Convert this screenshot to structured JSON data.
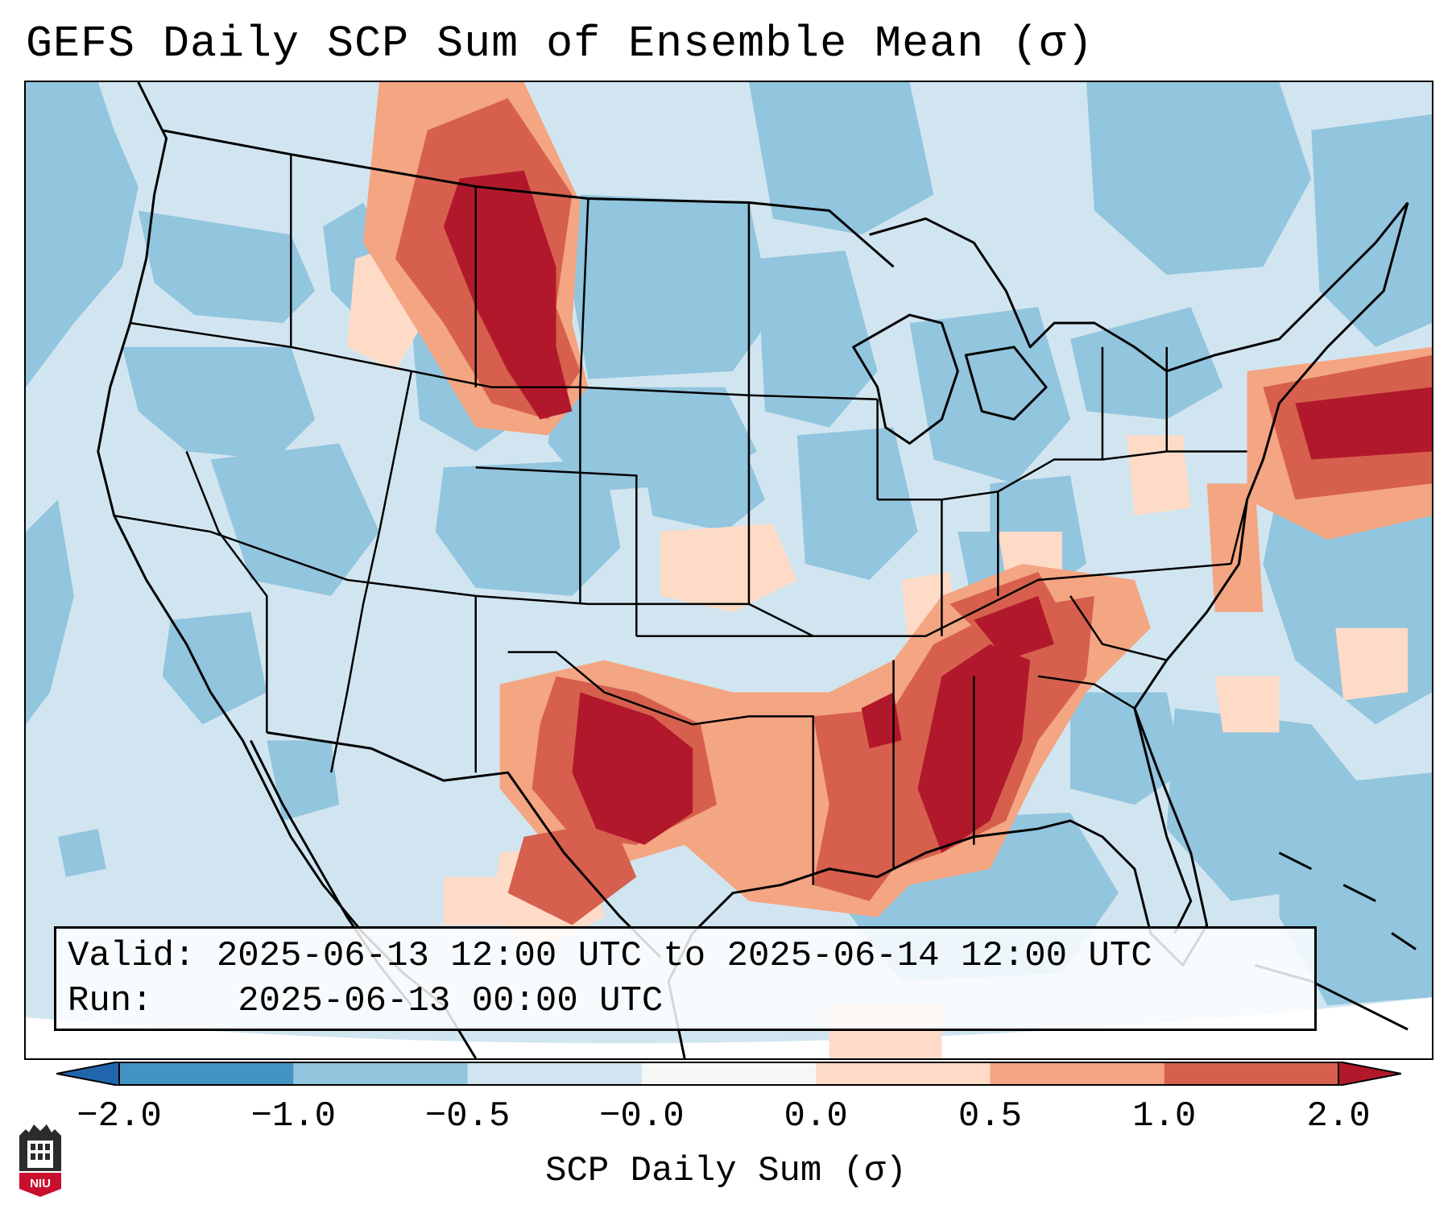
{
  "title": "GEFS Daily SCP Sum of Ensemble Mean (σ)",
  "info": {
    "valid_label": "Valid:",
    "valid_value": "2025-06-13 12:00 UTC to 2025-06-14 12:00 UTC",
    "run_label": "Run:",
    "run_value": "2025-06-13 00:00 UTC"
  },
  "colorbar": {
    "label": "SCP Daily Sum (σ)",
    "ticks": [
      "−2.0",
      "−1.0",
      "−0.5",
      "−0.0",
      "0.0",
      "0.5",
      "1.0",
      "2.0"
    ],
    "colors": [
      "#4393c3",
      "#92c5de",
      "#d1e5f0",
      "#f7f7f7",
      "#fddbc7",
      "#f4a582",
      "#d6604d",
      "#b2182b"
    ],
    "under_color": "#2166ac",
    "over_color": "#b2182b"
  },
  "logo": {
    "text": "NIU"
  }
}
